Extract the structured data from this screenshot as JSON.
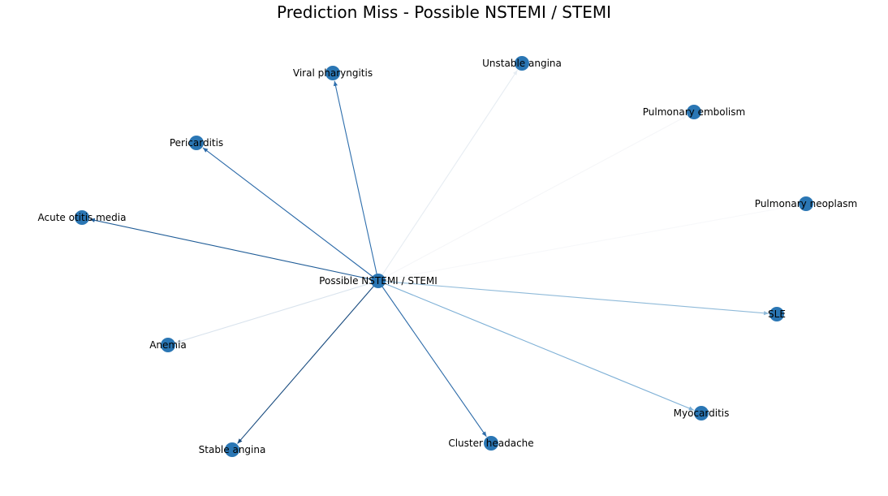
{
  "title": "Prediction Miss - Possible NSTEMI / STEMI",
  "node_color": "#2a76b4",
  "center": {
    "label": "Possible NSTEMI / STEMI"
  },
  "nodes": [
    {
      "id": "viral-pharyngitis",
      "label": "Viral pharyngitis",
      "edge_color": "#2f6fad"
    },
    {
      "id": "unstable-angina",
      "label": "Unstable angina",
      "edge_color": "#e6ecf2"
    },
    {
      "id": "pulmonary-embolism",
      "label": "Pulmonary embolism",
      "edge_color": "#f5f6f8"
    },
    {
      "id": "pericarditis",
      "label": "Pericarditis",
      "edge_color": "#2a69a8"
    },
    {
      "id": "pulmonary-neoplasm",
      "label": "Pulmonary neoplasm",
      "edge_color": "#f7f8fa"
    },
    {
      "id": "acute-otitis-media",
      "label": "Acute otitis media",
      "edge_color": "#1f5c97"
    },
    {
      "id": "sle",
      "label": "SLE",
      "edge_color": "#8fbad9"
    },
    {
      "id": "anemia",
      "label": "Anemia",
      "edge_color": "#d9e3ed"
    },
    {
      "id": "myocarditis",
      "label": "Myocarditis",
      "edge_color": "#7eb0d6"
    },
    {
      "id": "stable-angina",
      "label": "Stable angina",
      "edge_color": "#174a7e"
    },
    {
      "id": "cluster-headache",
      "label": "Cluster headache",
      "edge_color": "#2b6aa8"
    }
  ]
}
